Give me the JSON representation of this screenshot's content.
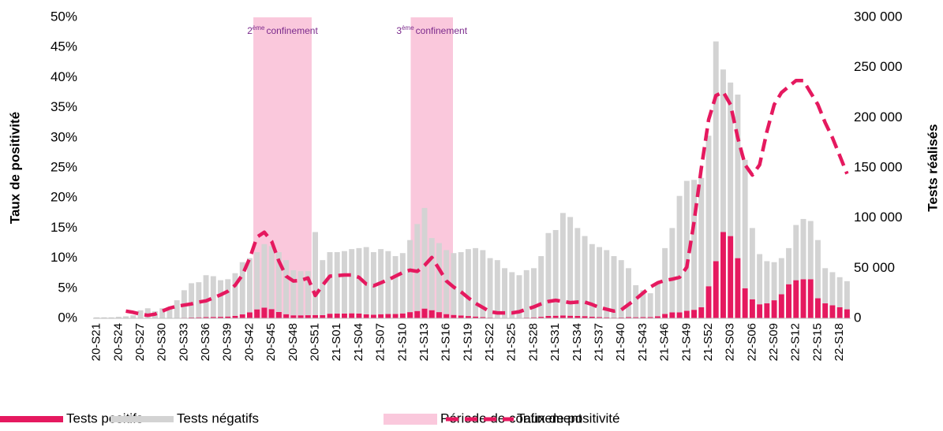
{
  "chart_data": {
    "type": "bar",
    "ylabel": "Taux de positivité",
    "y2label": "Tests réalisés",
    "categories": [
      "20-S21",
      null,
      null,
      "20-S24",
      null,
      null,
      "20-S27",
      null,
      null,
      "20-S30",
      null,
      null,
      "20-S33",
      null,
      null,
      "20-S36",
      null,
      null,
      "20-S39",
      null,
      null,
      "20-S42",
      null,
      null,
      "20-S45",
      null,
      null,
      "20-S48",
      null,
      null,
      "20-S51",
      null,
      null,
      "21-S01",
      null,
      null,
      "21-S04",
      null,
      null,
      "21-S07",
      null,
      null,
      "21-S10",
      null,
      null,
      "21-S13",
      null,
      null,
      "21-S16",
      null,
      null,
      "21-S19",
      null,
      null,
      "21-S22",
      null,
      null,
      "21-S25",
      null,
      null,
      "21-S28",
      null,
      null,
      "21-S31",
      null,
      null,
      "21-S34",
      null,
      null,
      "21-S37",
      null,
      null,
      "21-S40",
      null,
      null,
      "21-S43",
      null,
      null,
      "21-S46",
      null,
      null,
      "21-S49",
      null,
      null,
      "21-S52",
      null,
      null,
      "22-S03",
      null,
      null,
      "22-S06",
      null,
      null,
      "22-S09",
      null,
      null,
      "22-S12",
      null,
      null,
      "22-S15",
      null,
      null,
      "22-S18",
      null
    ],
    "series": [
      {
        "name": "Tests positifs",
        "type": "bar",
        "axis": "y2",
        "color": "#e5195f",
        "values": [
          20,
          20,
          20,
          30,
          20,
          30,
          60,
          50,
          50,
          120,
          190,
          360,
          600,
          800,
          1000,
          1200,
          1400,
          1500,
          1800,
          2500,
          4000,
          6000,
          8900,
          10600,
          9200,
          6300,
          4100,
          3000,
          3000,
          3100,
          3300,
          3200,
          4600,
          4700,
          4800,
          5000,
          4800,
          4000,
          3600,
          4100,
          4300,
          4300,
          4900,
          6200,
          7300,
          9700,
          8100,
          6200,
          4200,
          3400,
          2900,
          2300,
          1800,
          1200,
          700,
          500,
          500,
          400,
          500,
          700,
          1000,
          1500,
          2400,
          2600,
          2900,
          2600,
          2400,
          2200,
          1700,
          1300,
          1000,
          700,
          800,
          1200,
          1100,
          1200,
          1300,
          2100,
          4400,
          5900,
          6000,
          7500,
          8500,
          11000,
          32000,
          57000,
          86000,
          82000,
          60000,
          30000,
          19000,
          14000,
          15000,
          18000,
          24000,
          34000,
          38000,
          39000,
          39000,
          20000,
          15000,
          13000,
          11000,
          9000
        ]
      },
      {
        "name": "Tests négatifs",
        "type": "bar",
        "axis": "y2",
        "color": "#d3d3d3",
        "values": [
          980,
          980,
          980,
          1470,
          1980,
          2970,
          7940,
          9950,
          6950,
          9880,
          10810,
          17640,
          27400,
          34200,
          35000,
          41800,
          40600,
          36500,
          37200,
          42500,
          52000,
          54000,
          57100,
          63400,
          62800,
          59700,
          53900,
          45000,
          44000,
          43900,
          82700,
          54800,
          61400,
          61300,
          62200,
          64000,
          65200,
          67000,
          62400,
          64900,
          62700,
          57700,
          60100,
          71800,
          86700,
          100300,
          71900,
          68800,
          63800,
          61600,
          63100,
          66700,
          68200,
          66800,
          59300,
          57500,
          49500,
          45600,
          42500,
          47300,
          49000,
          60500,
          82600,
          85400,
          102100,
          98400,
          87600,
          79800,
          72300,
          69700,
          67000,
          61300,
          57200,
          48800,
          31900,
          26800,
          23700,
          32900,
          65600,
          84100,
          116000,
          129500,
          129500,
          129000,
          150000,
          219000,
          162000,
          153000,
          163000,
          128000,
          71000,
          50000,
          42000,
          38000,
          36000,
          36000,
          55000,
          60000,
          58000,
          58000,
          35000,
          33000,
          30000,
          28000
        ]
      },
      {
        "name": "Taux de positivité",
        "type": "line",
        "axis": "y",
        "color": "#e5195f",
        "dashed": true,
        "values": [
          null,
          null,
          null,
          null,
          1.2,
          1.0,
          0.7,
          0.5,
          0.7,
          1.2,
          1.7,
          2.0,
          2.2,
          2.4,
          2.7,
          2.9,
          3.4,
          3.9,
          4.5,
          5.5,
          7.2,
          10,
          13.5,
          14.3,
          12.8,
          9.5,
          7,
          6.2,
          6.3,
          6.7,
          3.8,
          5.5,
          7,
          7.1,
          7.2,
          7.2,
          6.8,
          5.7,
          5.4,
          5.9,
          6.4,
          7,
          7.6,
          8,
          7.8,
          8.8,
          10.1,
          8.2,
          6.2,
          5.2,
          4.4,
          3.4,
          2.5,
          1.8,
          1.1,
          0.9,
          0.9,
          0.9,
          1.1,
          1.5,
          1.9,
          2.4,
          2.8,
          3.0,
          2.8,
          2.6,
          2.7,
          2.7,
          2.3,
          1.8,
          1.5,
          1.2,
          1.4,
          2.3,
          3.2,
          4.2,
          5.2,
          5.9,
          6.3,
          6.5,
          6.8,
          8.5,
          16,
          25,
          33,
          37,
          37.6,
          35.5,
          30,
          25.5,
          23.8,
          25.5,
          31,
          35.5,
          37.5,
          38.5,
          39.5,
          39.5,
          37.5,
          35.5,
          32.5,
          30,
          27,
          24
        ]
      }
    ],
    "periods": {
      "name": "Période de confinement",
      "color": "#fac8dc",
      "spans": [
        {
          "from": 22,
          "to": 30,
          "number": "2",
          "sup": "ème",
          "text": "confinement"
        },
        {
          "from": 43.6,
          "to": 49.4,
          "number": "3",
          "sup": "ème",
          "text": "confinement"
        }
      ]
    },
    "ylim": [
      0,
      50
    ],
    "yticks": [
      {
        "value": 0,
        "label": "0%"
      },
      {
        "value": 5,
        "label": "5%"
      },
      {
        "value": 10,
        "label": "10%"
      },
      {
        "value": 15,
        "label": "15%"
      },
      {
        "value": 20,
        "label": "20%"
      },
      {
        "value": 25,
        "label": "25%"
      },
      {
        "value": 30,
        "label": "30%"
      },
      {
        "value": 35,
        "label": "35%"
      },
      {
        "value": 40,
        "label": "40%"
      },
      {
        "value": 45,
        "label": "45%"
      },
      {
        "value": 50,
        "label": "50%"
      }
    ],
    "y2lim": [
      0,
      300000
    ],
    "y2ticks": [
      0,
      {
        "value": 50000,
        "label": "50 000"
      },
      {
        "value": 100000,
        "label": "100 000"
      },
      {
        "value": 150000,
        "label": "150 000"
      },
      {
        "value": 200000,
        "label": "200 000"
      },
      {
        "value": 250000,
        "label": "250 000"
      },
      {
        "value": 300000,
        "label": "300 000"
      }
    ],
    "legend": "bottom"
  }
}
